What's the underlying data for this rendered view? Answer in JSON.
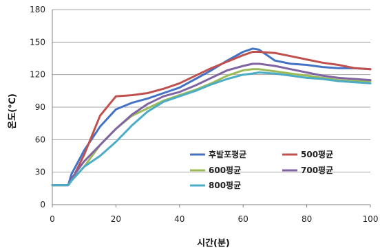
{
  "chart_data": {
    "type": "line",
    "title": "",
    "xlabel": "시간(분)",
    "ylabel": "온도(℃)",
    "xlim": [
      0,
      100
    ],
    "ylim": [
      0,
      180
    ],
    "x_ticks": [
      "0",
      "20",
      "40",
      "60",
      "80",
      "100"
    ],
    "y_ticks": [
      "0",
      "30",
      "60",
      "90",
      "120",
      "150",
      "180"
    ],
    "grid": "horizontal",
    "legend_placement": "lower-right",
    "x": [
      0,
      5,
      6,
      10,
      15,
      20,
      25,
      30,
      35,
      40,
      45,
      50,
      55,
      60,
      63,
      65,
      70,
      75,
      80,
      85,
      90,
      95,
      100
    ],
    "series": [
      {
        "name": "후발포평균",
        "color": "#4472c4",
        "values": [
          18,
          18,
          28,
          50,
          72,
          88,
          94,
          98,
          103,
          108,
          116,
          124,
          133,
          141,
          144,
          143,
          133,
          130,
          129,
          127,
          126,
          126,
          125
        ]
      },
      {
        "name": "500평균",
        "color": "#c0504d",
        "values": [
          18,
          18,
          22,
          46,
          82,
          100,
          101,
          103,
          107,
          112,
          119,
          126,
          132,
          138,
          141,
          141,
          140,
          137,
          134,
          131,
          129,
          126,
          125
        ]
      },
      {
        "name": "600평균",
        "color": "#9bbb59",
        "values": [
          18,
          18,
          22,
          35,
          55,
          70,
          82,
          89,
          96,
          101,
          106,
          112,
          119,
          124,
          125,
          125,
          123,
          121,
          119,
          117,
          115,
          114,
          114
        ]
      },
      {
        "name": "700평균",
        "color": "#8064a2",
        "values": [
          18,
          18,
          24,
          40,
          55,
          70,
          83,
          93,
          100,
          104,
          110,
          117,
          124,
          128,
          130,
          130,
          128,
          125,
          122,
          119,
          117,
          116,
          115
        ]
      },
      {
        "name": "800평균",
        "color": "#4bacc6",
        "values": [
          18,
          18,
          22,
          35,
          45,
          58,
          73,
          86,
          95,
          100,
          105,
          111,
          116,
          120,
          121,
          122,
          121,
          119,
          117,
          116,
          114,
          113,
          112
        ]
      }
    ]
  }
}
